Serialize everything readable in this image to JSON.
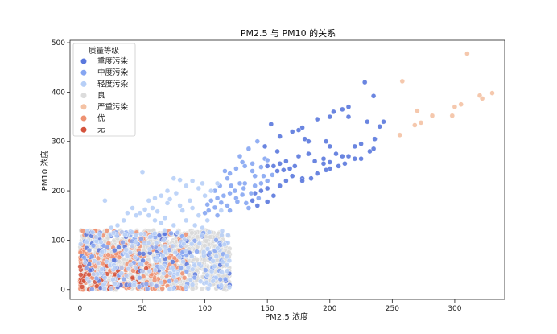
{
  "chart_data": {
    "type": "scatter",
    "title": "PM2.5 与 PM10 的关系",
    "xlabel": "PM2.5 浓度",
    "ylabel": "PM10 浓度",
    "xlim": [
      -8,
      340
    ],
    "ylim": [
      -20,
      505
    ],
    "xticks": [
      0,
      50,
      100,
      150,
      200,
      250,
      300
    ],
    "yticks": [
      0,
      100,
      200,
      300,
      400,
      500
    ],
    "grid": false,
    "legend": {
      "title": "质量等级",
      "position": "top-left",
      "entries": [
        {
          "name": "重度污染",
          "color": "#5a78dd"
        },
        {
          "name": "中度污染",
          "color": "#86a6f2"
        },
        {
          "name": "轻度污染",
          "color": "#b7cff7"
        },
        {
          "name": "良",
          "color": "#dcdcdc"
        },
        {
          "name": "严重污染",
          "color": "#f4c2a4"
        },
        {
          "name": "优",
          "color": "#ee9171"
        },
        {
          "name": "无",
          "color": "#d4523c"
        }
      ]
    },
    "series": [
      {
        "name": "重度污染",
        "color": "#5a78dd",
        "points": [
          [
            228,
            420
          ],
          [
            235,
            392
          ],
          [
            215,
            370
          ],
          [
            210,
            365
          ],
          [
            203,
            360
          ],
          [
            200,
            350
          ],
          [
            215,
            350
          ],
          [
            190,
            345
          ],
          [
            230,
            340
          ],
          [
            243,
            340
          ],
          [
            178,
            328
          ],
          [
            175,
            323
          ],
          [
            170,
            320
          ],
          [
            160,
            310
          ],
          [
            180,
            305
          ],
          [
            197,
            300
          ],
          [
            183,
            300
          ],
          [
            200,
            290
          ],
          [
            220,
            290
          ],
          [
            225,
            295
          ],
          [
            240,
            330
          ],
          [
            235,
            285
          ],
          [
            205,
            275
          ],
          [
            210,
            270
          ],
          [
            215,
            270
          ],
          [
            220,
            265
          ],
          [
            195,
            265
          ],
          [
            183,
            275
          ],
          [
            175,
            270
          ],
          [
            172,
            250
          ],
          [
            165,
            260
          ],
          [
            160,
            255
          ],
          [
            155,
            250
          ],
          [
            150,
            250
          ],
          [
            168,
            245
          ],
          [
            158,
            240
          ],
          [
            170,
            230
          ],
          [
            178,
            225
          ],
          [
            190,
            235
          ],
          [
            200,
            245
          ],
          [
            207,
            250
          ],
          [
            212,
            255
          ],
          [
            197,
            242
          ],
          [
            185,
            225
          ],
          [
            165,
            220
          ],
          [
            160,
            210
          ],
          [
            150,
            205
          ],
          [
            145,
            200
          ],
          [
            140,
            195
          ],
          [
            155,
            190
          ],
          [
            150,
            178
          ],
          [
            138,
            180
          ],
          [
            142,
            170
          ],
          [
            178,
            220
          ],
          [
            188,
            260
          ],
          [
            200,
            258
          ],
          [
            225,
            265
          ],
          [
            232,
            280
          ],
          [
            236,
            305
          ],
          [
            195,
            255
          ],
          [
            153,
            335
          ],
          [
            158,
            280
          ],
          [
            148,
            290
          ],
          [
            163,
            242
          ]
        ]
      },
      {
        "name": "中度污染",
        "color": "#86a6f2",
        "points": [
          [
            142,
            300
          ],
          [
            135,
            285
          ],
          [
            128,
            270
          ],
          [
            132,
            250
          ],
          [
            138,
            255
          ],
          [
            125,
            245
          ],
          [
            120,
            235
          ],
          [
            118,
            225
          ],
          [
            128,
            215
          ],
          [
            132,
            215
          ],
          [
            140,
            210
          ],
          [
            145,
            215
          ],
          [
            150,
            220
          ],
          [
            124,
            200
          ],
          [
            120,
            195
          ],
          [
            115,
            190
          ],
          [
            110,
            185
          ],
          [
            130,
            192
          ],
          [
            125,
            185
          ],
          [
            113,
            176
          ],
          [
            118,
            170
          ],
          [
            108,
            166
          ],
          [
            103,
            160
          ],
          [
            100,
            155
          ],
          [
            110,
            150
          ],
          [
            120,
            160
          ],
          [
            135,
            165
          ],
          [
            133,
            175
          ],
          [
            143,
            185
          ],
          [
            140,
            230
          ],
          [
            138,
            240
          ],
          [
            147,
            230
          ],
          [
            148,
            265
          ],
          [
            154,
            232
          ],
          [
            112,
            210
          ],
          [
            116,
            240
          ],
          [
            121,
            210
          ],
          [
            108,
            200
          ],
          [
            105,
            180
          ],
          [
            102,
            172
          ],
          [
            126,
            178
          ],
          [
            131,
            205
          ],
          [
            137,
            195
          ],
          [
            145,
            248
          ],
          [
            150,
            262
          ],
          [
            130,
            258
          ]
        ]
      },
      {
        "name": "轻度污染",
        "color": "#b7cff7",
        "points": [
          [
            50,
            238
          ],
          [
            75,
            225
          ],
          [
            80,
            222
          ],
          [
            90,
            220
          ],
          [
            85,
            210
          ],
          [
            95,
            205
          ],
          [
            98,
            215
          ],
          [
            70,
            200
          ],
          [
            65,
            190
          ],
          [
            60,
            185
          ],
          [
            55,
            180
          ],
          [
            70,
            175
          ],
          [
            80,
            170
          ],
          [
            90,
            165
          ],
          [
            100,
            190
          ],
          [
            105,
            200
          ],
          [
            77,
            195
          ],
          [
            72,
            183
          ],
          [
            52,
            162
          ],
          [
            48,
            155
          ],
          [
            45,
            150
          ],
          [
            55,
            150
          ],
          [
            60,
            140
          ],
          [
            65,
            135
          ],
          [
            75,
            130
          ],
          [
            85,
            140
          ],
          [
            95,
            150
          ],
          [
            88,
            180
          ],
          [
            82,
            160
          ],
          [
            58,
            165
          ],
          [
            62,
            158
          ],
          [
            68,
            145
          ],
          [
            92,
            130
          ],
          [
            98,
            125
          ],
          [
            35,
            140
          ],
          [
            30,
            130
          ],
          [
            25,
            125
          ],
          [
            38,
            155
          ],
          [
            42,
            165
          ],
          [
            20,
            180
          ],
          [
            110,
            215
          ],
          [
            113,
            160
          ],
          [
            102,
            140
          ]
        ]
      },
      {
        "name": "严重污染",
        "color": "#f4c2a4",
        "points": [
          [
            310,
            478
          ],
          [
            258,
            422
          ],
          [
            330,
            398
          ],
          [
            320,
            393
          ],
          [
            322,
            387
          ],
          [
            305,
            375
          ],
          [
            300,
            370
          ],
          [
            282,
            352
          ],
          [
            270,
            362
          ],
          [
            273,
            338
          ],
          [
            268,
            333
          ],
          [
            298,
            352
          ],
          [
            256,
            313
          ]
        ]
      }
    ],
    "clusters": [
      {
        "name": "良",
        "color": "#d9d9d9",
        "x": [
          0,
          120
        ],
        "y": [
          0,
          120
        ],
        "count": 1250,
        "seed": 7
      },
      {
        "name": "优",
        "color": "#ee9171",
        "x": [
          0,
          85
        ],
        "y": [
          0,
          120
        ],
        "count": 230,
        "bias": "low",
        "seed": 11
      },
      {
        "name": "无",
        "color": "#d4523c",
        "x": [
          0,
          60
        ],
        "y": [
          0,
          50
        ],
        "count": 40,
        "bias": "low",
        "seed": 19
      },
      {
        "name": "重度污染",
        "color": "#5a78dd",
        "x": [
          0,
          120
        ],
        "y": [
          0,
          120
        ],
        "count": 55,
        "seed": 23
      },
      {
        "name": "中度污染",
        "color": "#86a6f2",
        "x": [
          0,
          120
        ],
        "y": [
          0,
          120
        ],
        "count": 90,
        "seed": 29
      },
      {
        "name": "轻度污染",
        "color": "#b7cff7",
        "x": [
          0,
          120
        ],
        "y": [
          0,
          120
        ],
        "count": 160,
        "seed": 31
      }
    ]
  }
}
